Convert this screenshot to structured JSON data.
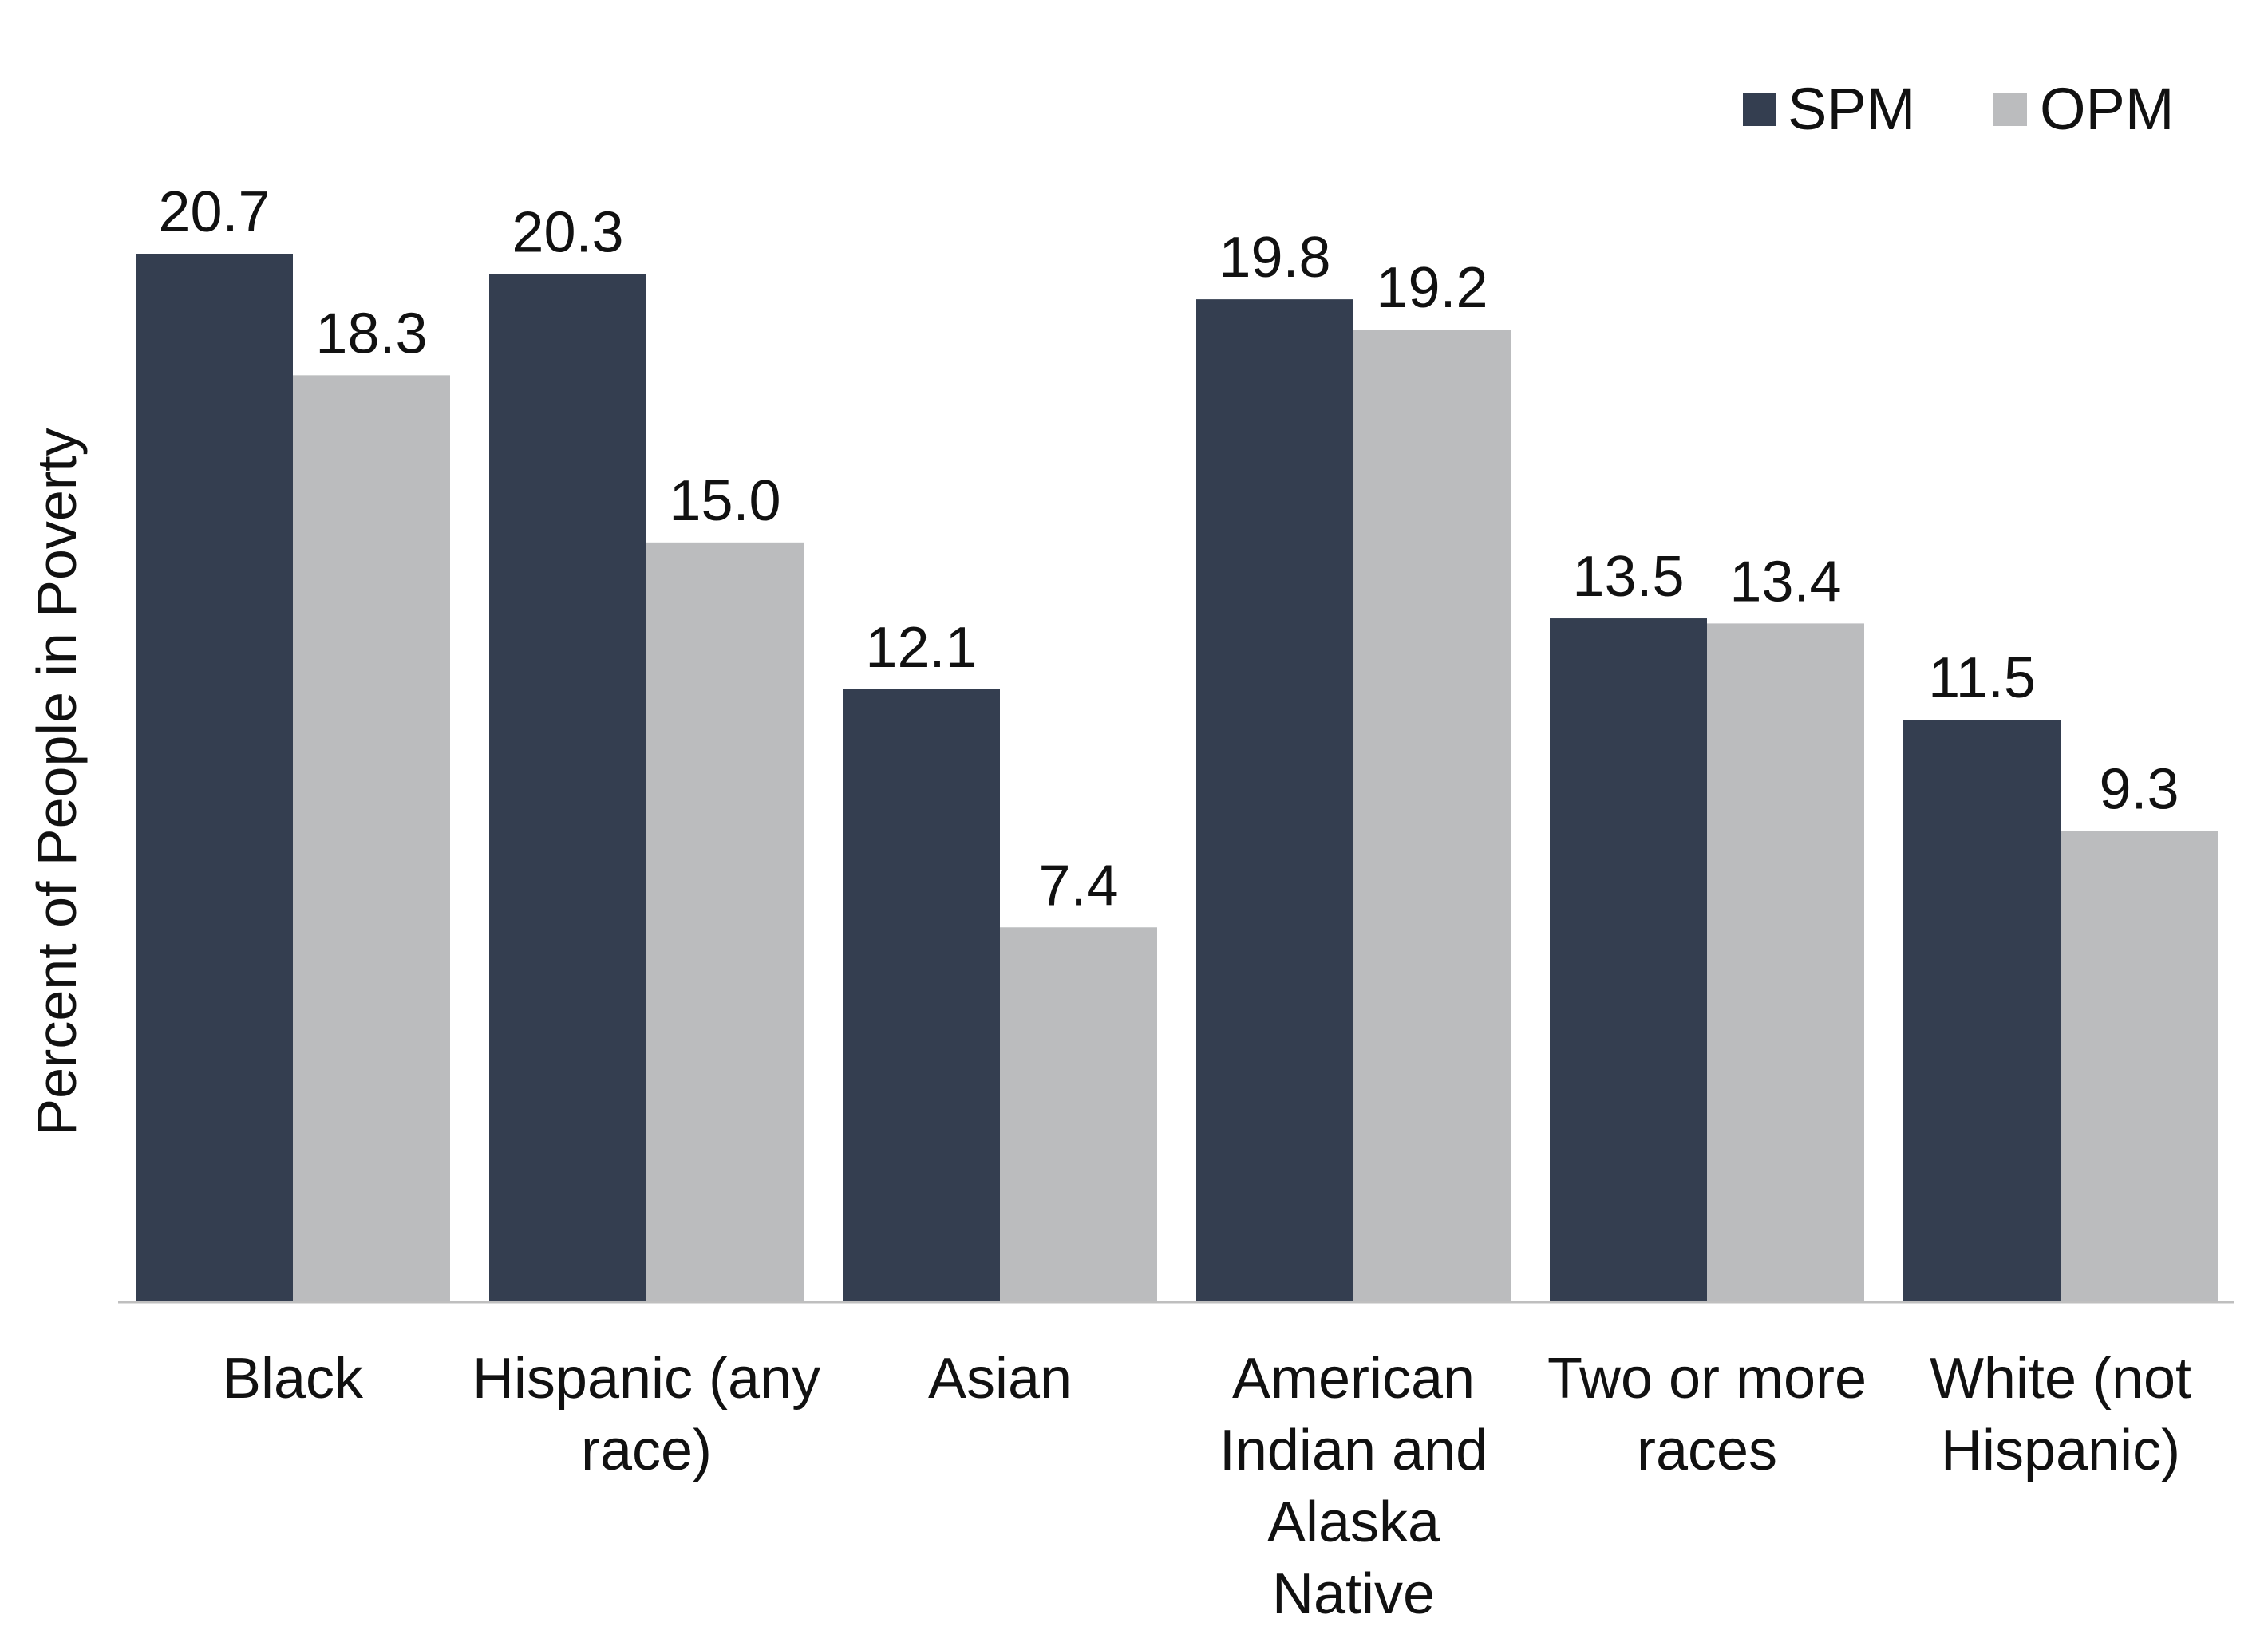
{
  "chart_data": {
    "type": "bar",
    "title": "",
    "xlabel": "",
    "ylabel": "Percent of People in Poverty",
    "categories": [
      [
        "Black"
      ],
      [
        "Hispanic (any",
        "race)"
      ],
      [
        "Asian"
      ],
      [
        "American",
        "Indian and",
        "Alaska",
        "Native"
      ],
      [
        "Two or more",
        "races"
      ],
      [
        "White (not",
        "Hispanic)"
      ]
    ],
    "series": [
      {
        "name": "SPM",
        "color": "#343e50",
        "values": [
          20.7,
          20.3,
          12.1,
          19.8,
          13.5,
          11.5
        ],
        "labels": [
          "20.7",
          "20.3",
          "12.1",
          "19.8",
          "13.5",
          "11.5"
        ]
      },
      {
        "name": "OPM",
        "color": "#bbbcbe",
        "values": [
          18.3,
          15.0,
          7.4,
          19.2,
          13.4,
          9.3
        ],
        "labels": [
          "18.3",
          "15.0",
          "7.4",
          "19.2",
          "13.4",
          "9.3"
        ]
      }
    ],
    "ylim": [
      0,
      25
    ],
    "grid": false,
    "legend_position": "top-right",
    "axis_color": "#bfbfbf"
  }
}
